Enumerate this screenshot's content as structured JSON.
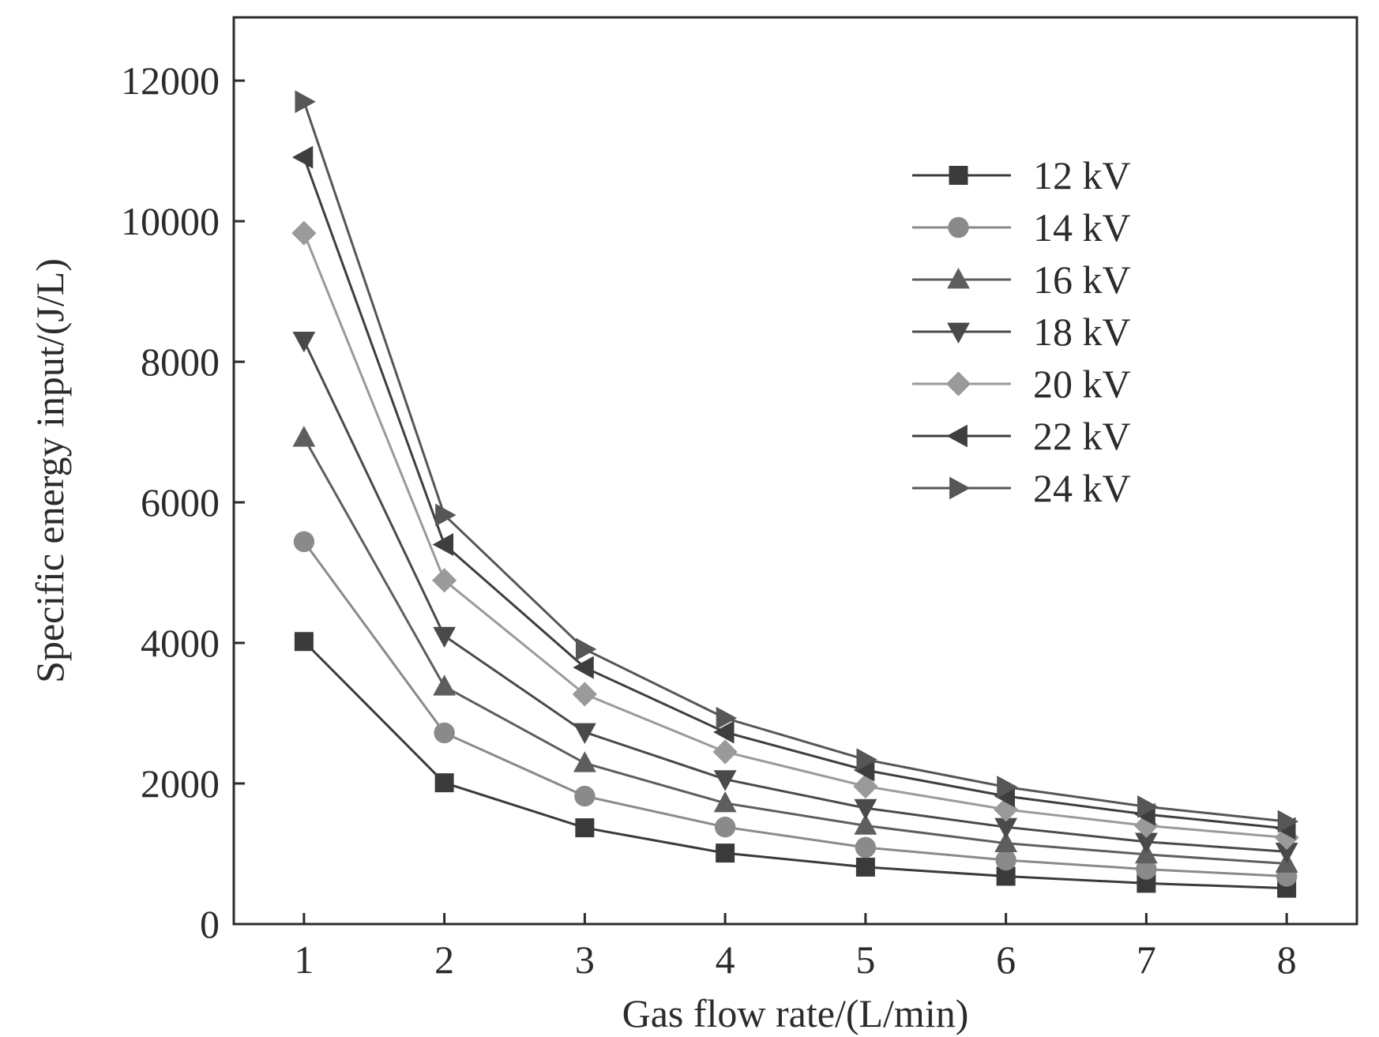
{
  "chart_data": {
    "type": "line",
    "xlabel": "Gas flow rate/(L/min)",
    "ylabel": "Specific energy input/(J/L)",
    "x": [
      1,
      2,
      3,
      4,
      5,
      6,
      7,
      8
    ],
    "xlim": [
      0.5,
      8.5
    ],
    "ylim": [
      0,
      12900
    ],
    "xticks": [
      1,
      2,
      3,
      4,
      5,
      6,
      7,
      8
    ],
    "yticks": [
      0,
      2000,
      4000,
      6000,
      8000,
      10000,
      12000
    ],
    "legend_position": "top-right",
    "grid": false,
    "series": [
      {
        "name": "12 kV",
        "marker": "square",
        "color": "#3a3a3a",
        "values": [
          4020,
          2010,
          1370,
          1010,
          810,
          680,
          580,
          510
        ]
      },
      {
        "name": "14 kV",
        "marker": "circle",
        "color": "#8a8a8a",
        "values": [
          5440,
          2720,
          1820,
          1380,
          1090,
          910,
          780,
          680
        ]
      },
      {
        "name": "16 kV",
        "marker": "triangle-up",
        "color": "#5e5e5e",
        "values": [
          6920,
          3380,
          2290,
          1720,
          1400,
          1150,
          990,
          860
        ]
      },
      {
        "name": "18 kV",
        "marker": "triangle-down",
        "color": "#4a4a4a",
        "values": [
          8300,
          4100,
          2730,
          2060,
          1650,
          1380,
          1170,
          1030
        ]
      },
      {
        "name": "20 kV",
        "marker": "diamond",
        "color": "#9a9a9a",
        "values": [
          9830,
          4890,
          3270,
          2450,
          1960,
          1630,
          1400,
          1230
        ]
      },
      {
        "name": "22 kV",
        "marker": "triangle-left",
        "color": "#3e3e3e",
        "values": [
          10910,
          5400,
          3650,
          2730,
          2190,
          1820,
          1560,
          1360
        ]
      },
      {
        "name": "24 kV",
        "marker": "triangle-right",
        "color": "#565656",
        "values": [
          11700,
          5820,
          3910,
          2930,
          2340,
          1950,
          1670,
          1460
        ]
      }
    ]
  }
}
